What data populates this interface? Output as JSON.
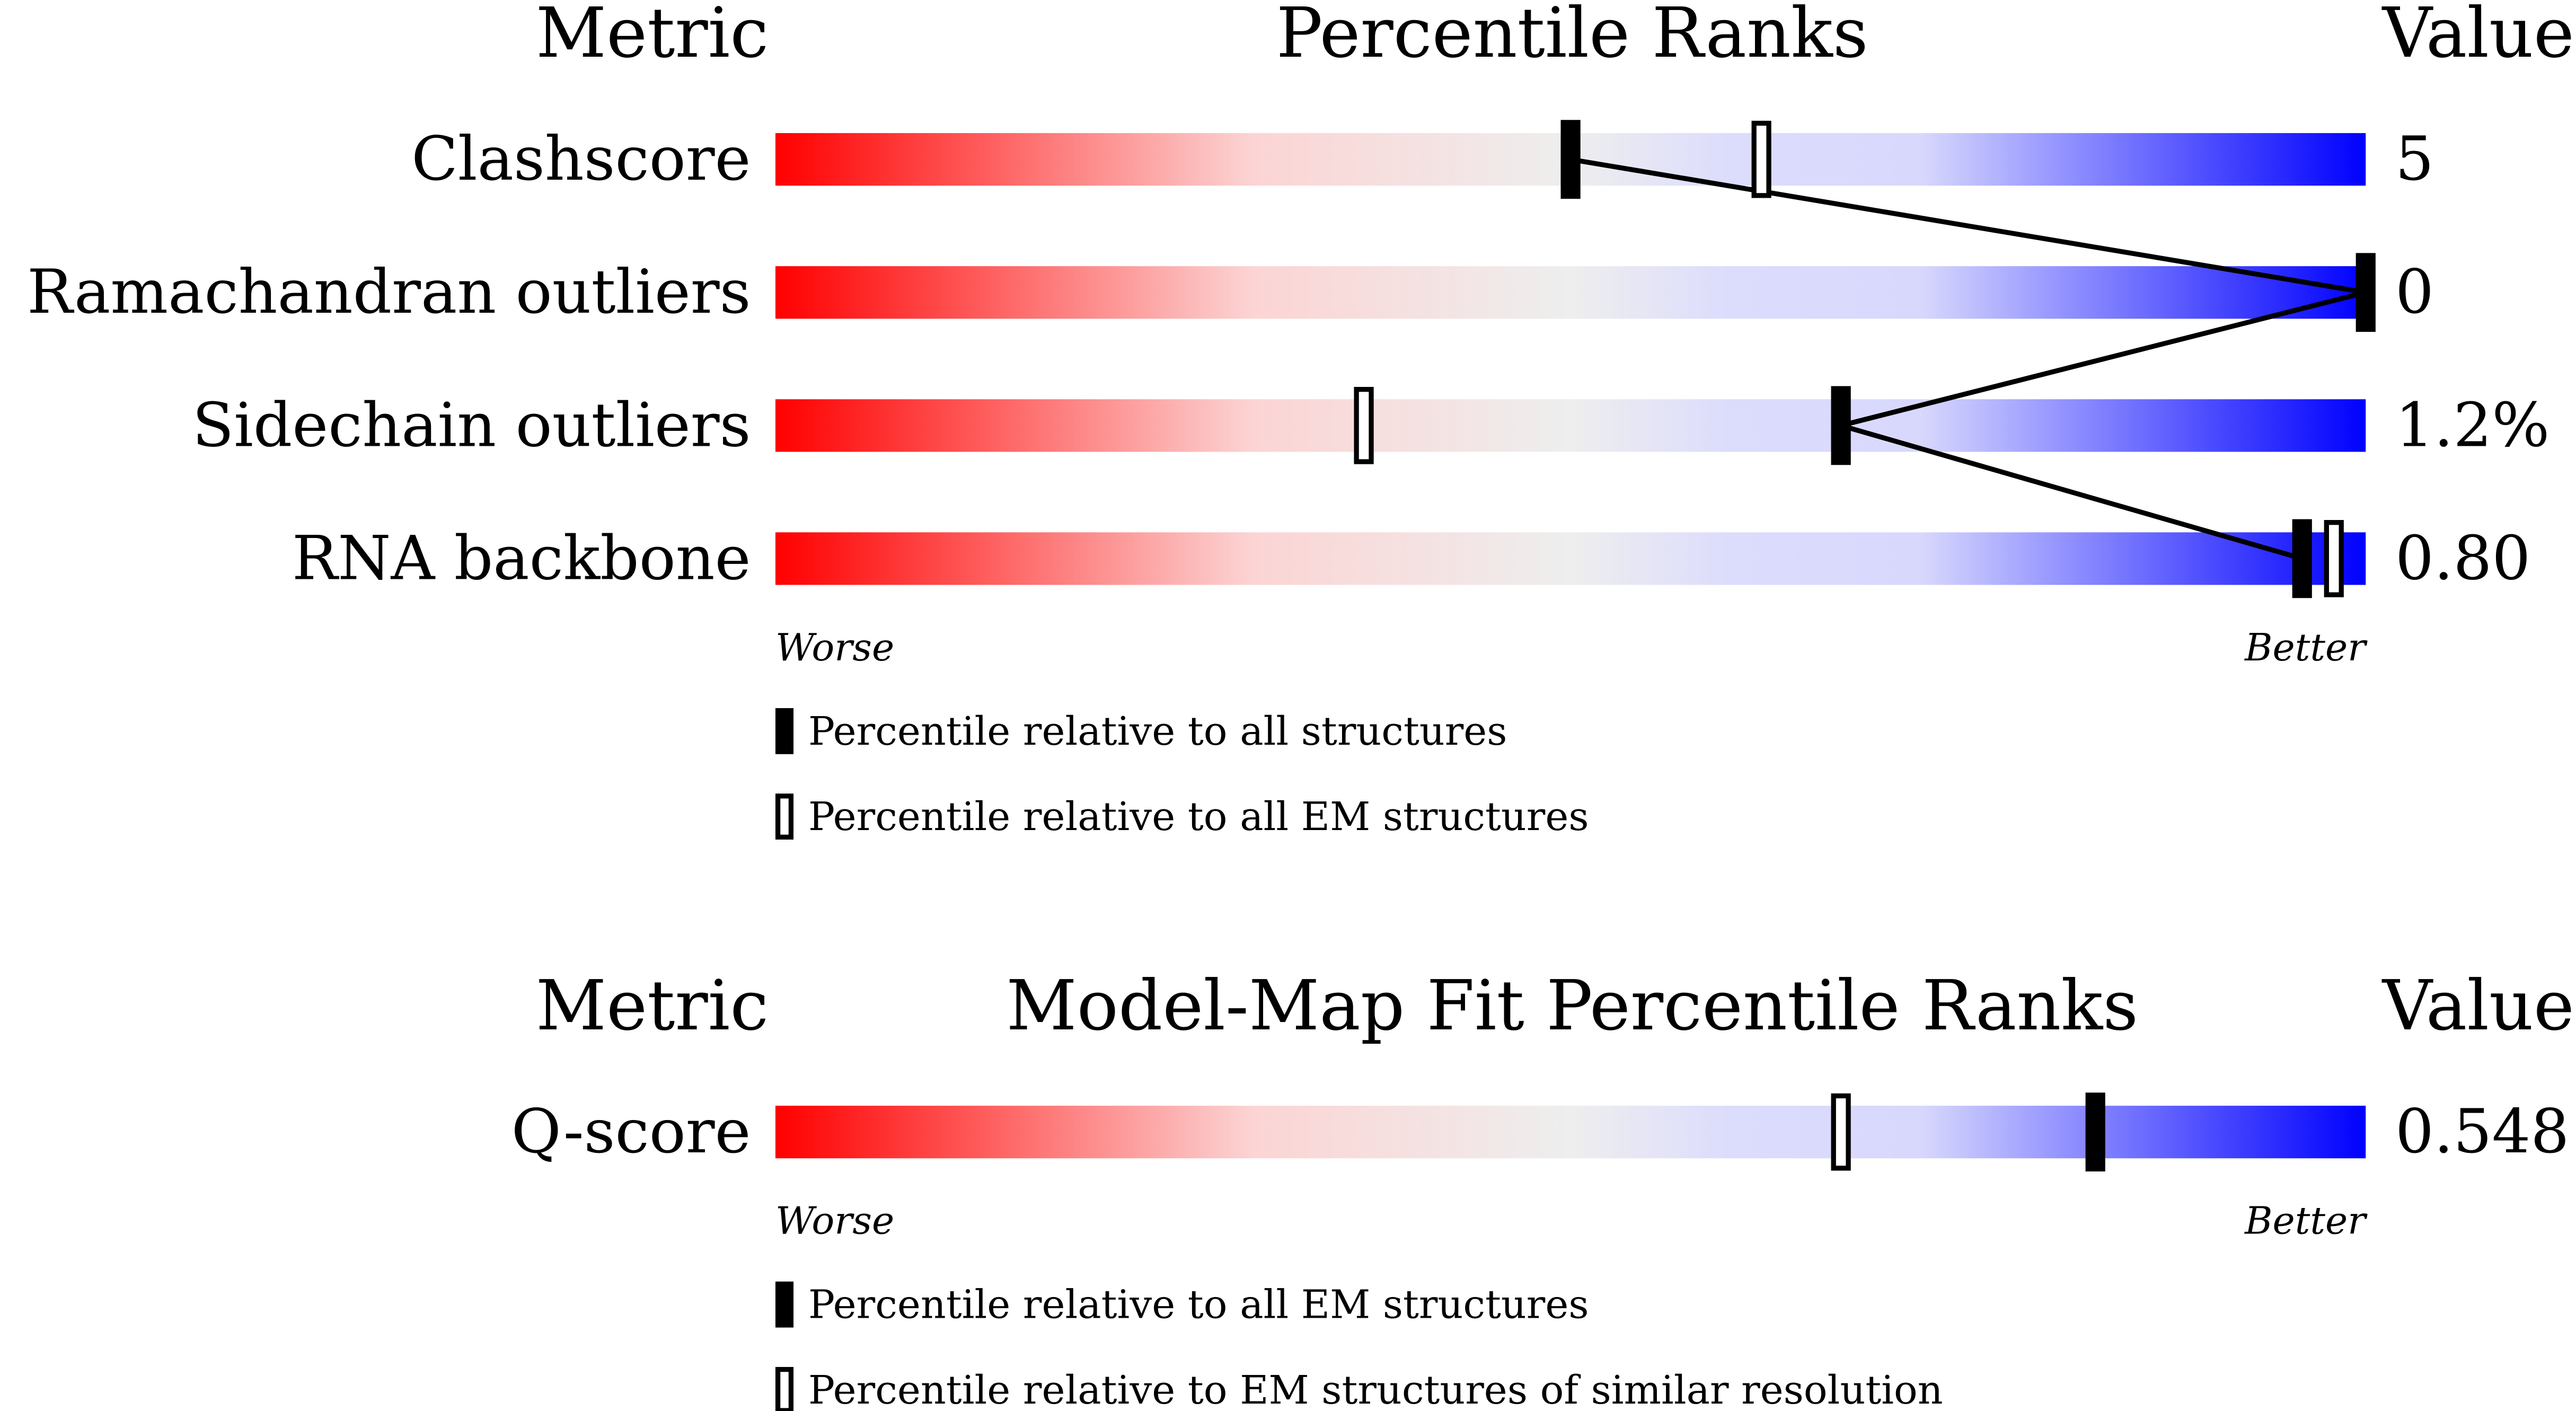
{
  "chart_data": [
    {
      "type": "slider",
      "metric_header": "Metric",
      "title": "Percentile Ranks",
      "value_header": "Value",
      "categories": [
        "Clashscore",
        "Ramachandran outliers",
        "Sidechain outliers",
        "RNA backbone"
      ],
      "metric_values": [
        "5",
        "0",
        "1.2%",
        "0.80"
      ],
      "series": [
        {
          "name": "Percentile relative to all structures",
          "style": "filled",
          "color": "#000000",
          "values": [
            50,
            100,
            67,
            96
          ]
        },
        {
          "name": "Percentile relative to all EM structures",
          "style": "open",
          "color": "#000000",
          "values": [
            62,
            null,
            37,
            98
          ]
        }
      ],
      "xlim": [
        0,
        100
      ],
      "low_label": "Worse",
      "high_label": "Better",
      "connect": true
    },
    {
      "type": "slider",
      "metric_header": "Metric",
      "title": "Model-Map Fit Percentile Ranks",
      "value_header": "Value",
      "categories": [
        "Q-score"
      ],
      "metric_values": [
        "0.548"
      ],
      "series": [
        {
          "name": "Percentile relative to all EM structures",
          "style": "filled",
          "color": "#000000",
          "values": [
            83
          ]
        },
        {
          "name": "Percentile relative to EM structures of similar resolution",
          "style": "open",
          "color": "#000000",
          "values": [
            67
          ]
        }
      ],
      "xlim": [
        0,
        100
      ],
      "low_label": "Worse",
      "high_label": "Better",
      "connect": true
    }
  ]
}
